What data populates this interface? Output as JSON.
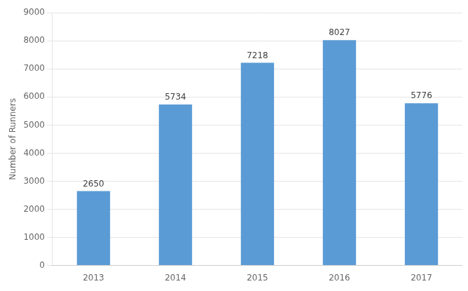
{
  "chart_data": {
    "type": "bar",
    "categories": [
      "2013",
      "2014",
      "2015",
      "2016",
      "2017"
    ],
    "values": [
      2650,
      5734,
      7218,
      8027,
      5776
    ],
    "color": "#5b9bd5",
    "ylabel": "Number of Runners",
    "ylim": [
      0,
      9000
    ],
    "yticks": [
      0,
      1000,
      2000,
      3000,
      4000,
      5000,
      6000,
      7000,
      8000,
      9000
    ],
    "grid": true,
    "data_labels": true
  }
}
